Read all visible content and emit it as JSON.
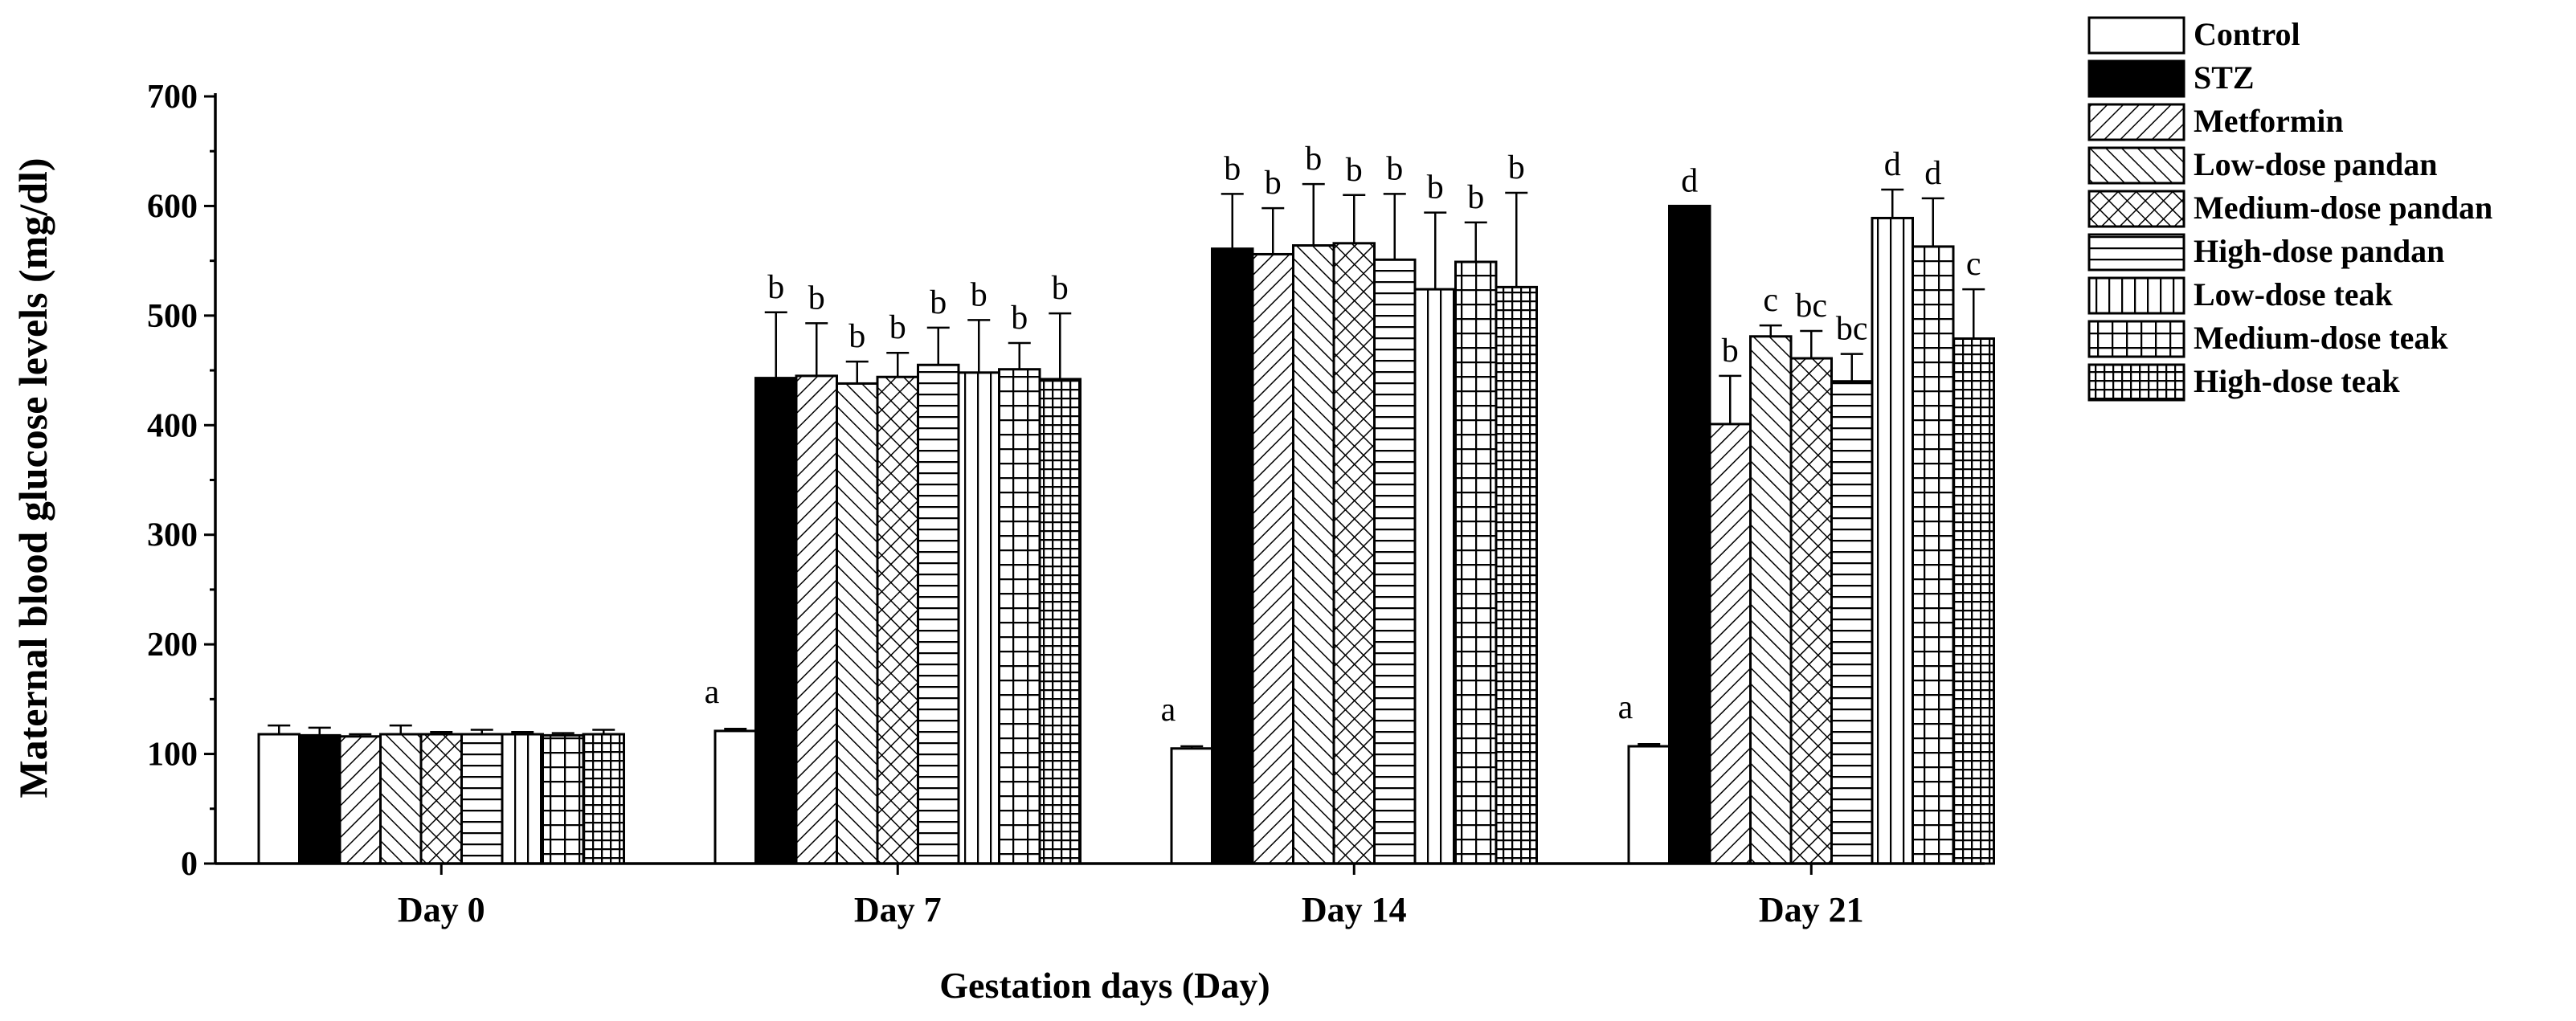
{
  "chart_data": {
    "type": "bar",
    "title": "",
    "xlabel": "Gestation days (Day)",
    "ylabel": "Maternal blood glucose levels (mg/dl)",
    "ylim": [
      0,
      700
    ],
    "yticks": [
      0,
      100,
      200,
      300,
      400,
      500,
      600,
      700
    ],
    "categories": [
      "Day 0",
      "Day 7",
      "Day 14",
      "Day 21"
    ],
    "legend_position": "right",
    "series": [
      {
        "name": "Control",
        "pattern": "white",
        "values": [
          118,
          121,
          105,
          107
        ],
        "errors": [
          8,
          2,
          2,
          2
        ],
        "labels": [
          "",
          "a",
          "a",
          "a"
        ]
      },
      {
        "name": "STZ",
        "pattern": "black",
        "values": [
          117,
          443,
          561,
          600
        ],
        "errors": [
          7,
          60,
          50,
          0
        ],
        "labels": [
          "",
          "b",
          "b",
          "d"
        ]
      },
      {
        "name": "Metformin",
        "pattern": "diag-forward",
        "values": [
          116,
          445,
          556,
          401
        ],
        "errors": [
          2,
          48,
          42,
          44
        ],
        "labels": [
          "",
          "b",
          "b",
          "b"
        ]
      },
      {
        "name": "Low-dose pandan",
        "pattern": "diag-back",
        "values": [
          118,
          438,
          564,
          481
        ],
        "errors": [
          8,
          20,
          56,
          10
        ],
        "labels": [
          "",
          "b",
          "b",
          "c"
        ]
      },
      {
        "name": "Medium-dose pandan",
        "pattern": "crosshatch",
        "values": [
          118,
          444,
          566,
          461
        ],
        "errors": [
          2,
          22,
          44,
          25
        ],
        "labels": [
          "",
          "b",
          "b",
          "bc"
        ]
      },
      {
        "name": "High-dose pandan",
        "pattern": "horizontal",
        "values": [
          118,
          455,
          551,
          440
        ],
        "errors": [
          4,
          34,
          60,
          25
        ],
        "labels": [
          "",
          "b",
          "b",
          "bc"
        ]
      },
      {
        "name": "Low-dose teak",
        "pattern": "vertical",
        "values": [
          118,
          448,
          524,
          589
        ],
        "errors": [
          2,
          48,
          70,
          26
        ],
        "labels": [
          "",
          "b",
          "b",
          "d"
        ]
      },
      {
        "name": "Medium-dose teak",
        "pattern": "grid",
        "values": [
          117,
          451,
          549,
          563
        ],
        "errors": [
          2,
          24,
          36,
          44
        ],
        "labels": [
          "",
          "b",
          "b",
          "d"
        ]
      },
      {
        "name": "High-dose teak",
        "pattern": "fine-grid",
        "values": [
          118,
          442,
          526,
          479
        ],
        "errors": [
          4,
          60,
          86,
          45
        ],
        "labels": [
          "",
          "b",
          "b",
          "c"
        ]
      }
    ]
  }
}
